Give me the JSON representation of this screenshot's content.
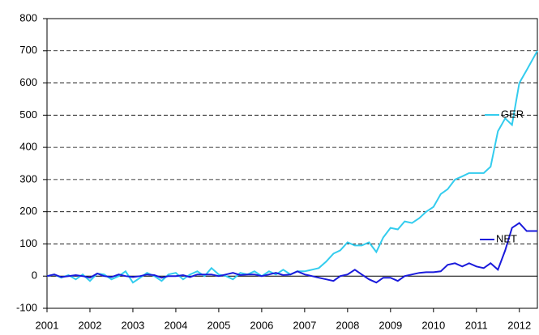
{
  "chart_data": {
    "type": "line",
    "x": [
      2001,
      2001.17,
      2001.33,
      2001.5,
      2001.67,
      2001.83,
      2002,
      2002.17,
      2002.33,
      2002.5,
      2002.67,
      2002.83,
      2003,
      2003.17,
      2003.33,
      2003.5,
      2003.67,
      2003.83,
      2004,
      2004.17,
      2004.33,
      2004.5,
      2004.67,
      2004.83,
      2005,
      2005.17,
      2005.33,
      2005.5,
      2005.67,
      2005.83,
      2006,
      2006.17,
      2006.33,
      2006.5,
      2006.67,
      2006.83,
      2007,
      2007.17,
      2007.33,
      2007.5,
      2007.67,
      2007.83,
      2008,
      2008.17,
      2008.33,
      2008.5,
      2008.67,
      2008.83,
      2009,
      2009.17,
      2009.33,
      2009.5,
      2009.67,
      2009.83,
      2010,
      2010.17,
      2010.33,
      2010.5,
      2010.67,
      2010.83,
      2011,
      2011.17,
      2011.33,
      2011.5,
      2011.67,
      2011.83,
      2012,
      2012.17,
      2012.42
    ],
    "series": [
      {
        "name": "GER",
        "color": "#33ccee",
        "values": [
          0,
          5,
          -5,
          3,
          -10,
          5,
          -15,
          8,
          5,
          -10,
          0,
          15,
          -20,
          -5,
          10,
          0,
          -15,
          5,
          10,
          -10,
          5,
          15,
          0,
          25,
          5,
          0,
          -10,
          10,
          5,
          15,
          0,
          15,
          5,
          20,
          5,
          15,
          15,
          20,
          25,
          45,
          70,
          80,
          105,
          95,
          95,
          105,
          75,
          120,
          150,
          145,
          170,
          165,
          180,
          200,
          215,
          255,
          270,
          300,
          310,
          320,
          320,
          320,
          340,
          450,
          490,
          470,
          600,
          640,
          700
        ]
      },
      {
        "name": "NET",
        "color": "#1a1adb",
        "values": [
          0,
          5,
          -3,
          0,
          3,
          0,
          -5,
          8,
          0,
          -3,
          5,
          0,
          -3,
          0,
          5,
          3,
          -5,
          0,
          0,
          3,
          -3,
          5,
          5,
          5,
          0,
          5,
          10,
          3,
          5,
          5,
          0,
          5,
          10,
          3,
          5,
          15,
          5,
          0,
          -5,
          -10,
          -15,
          0,
          5,
          20,
          5,
          -10,
          -20,
          -5,
          -5,
          -15,
          0,
          5,
          10,
          12,
          12,
          15,
          35,
          40,
          30,
          40,
          30,
          25,
          40,
          20,
          80,
          150,
          165,
          140,
          140
        ]
      }
    ],
    "xlim": [
      2001,
      2012.42
    ],
    "xticks": [
      2001,
      2002,
      2003,
      2004,
      2005,
      2006,
      2007,
      2008,
      2009,
      2010,
      2011,
      2012
    ],
    "ylim": [
      -100,
      800
    ],
    "yticks": [
      -100,
      0,
      100,
      200,
      300,
      400,
      500,
      600,
      700,
      800
    ],
    "grid": true
  }
}
